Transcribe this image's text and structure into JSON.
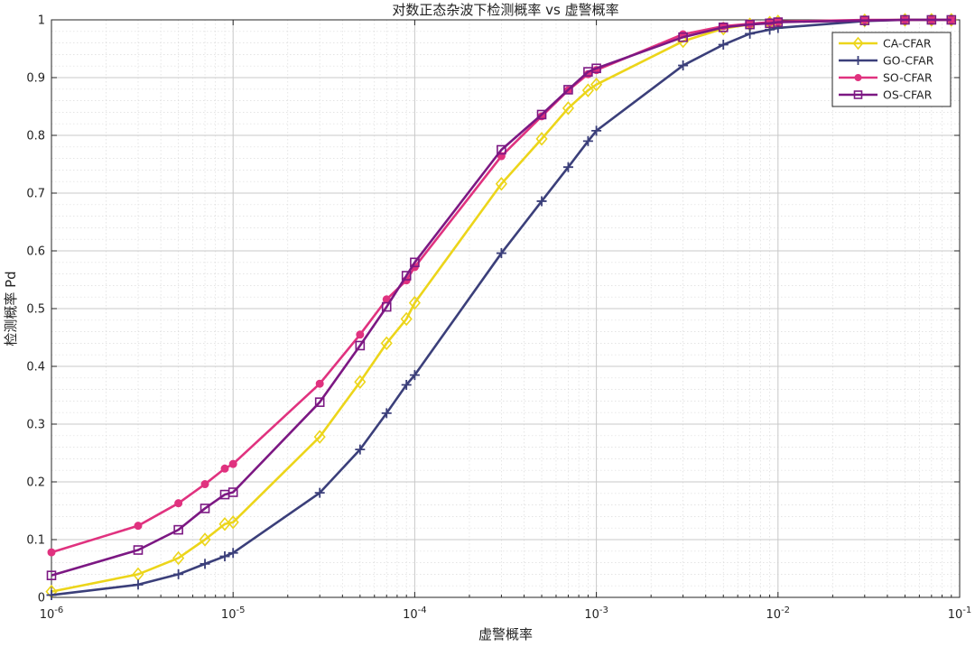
{
  "chart_data": {
    "type": "line",
    "title": "对数正态杂波下检测概率 vs 虚警概率",
    "xlabel": "虚警概率",
    "ylabel": "检测概率 Pd",
    "xscale": "log",
    "xlim": [
      1e-06,
      0.1
    ],
    "ylim": [
      0,
      1
    ],
    "grid": true,
    "minor_grid": true,
    "legend_position": "top-right",
    "x_ticks": [
      {
        "value": 1e-06,
        "base": "10",
        "exp": "-6"
      },
      {
        "value": 1e-05,
        "base": "10",
        "exp": "-5"
      },
      {
        "value": 0.0001,
        "base": "10",
        "exp": "-4"
      },
      {
        "value": 0.001,
        "base": "10",
        "exp": "-3"
      },
      {
        "value": 0.01,
        "base": "10",
        "exp": "-2"
      },
      {
        "value": 0.1,
        "base": "10",
        "exp": "-1"
      }
    ],
    "y_ticks": [
      {
        "value": 0,
        "label": "0"
      },
      {
        "value": 0.1,
        "label": "0.1"
      },
      {
        "value": 0.2,
        "label": "0.2"
      },
      {
        "value": 0.3,
        "label": "0.3"
      },
      {
        "value": 0.4,
        "label": "0.4"
      },
      {
        "value": 0.5,
        "label": "0.5"
      },
      {
        "value": 0.6,
        "label": "0.6"
      },
      {
        "value": 0.7,
        "label": "0.7"
      },
      {
        "value": 0.8,
        "label": "0.8"
      },
      {
        "value": 0.9,
        "label": "0.9"
      },
      {
        "value": 1,
        "label": "1"
      }
    ],
    "x": [
      1e-06,
      3e-06,
      5e-06,
      7e-06,
      9e-06,
      1e-05,
      3e-05,
      5e-05,
      7e-05,
      9e-05,
      0.0001,
      0.0003,
      0.0005,
      0.0007,
      0.0009,
      0.001,
      0.003,
      0.005,
      0.007,
      0.009,
      0.01,
      0.03,
      0.05,
      0.07,
      0.09
    ],
    "series": [
      {
        "name": "CA-CFAR",
        "color": "#ecd51a",
        "marker": "diamond",
        "values": [
          0.01,
          0.04,
          0.068,
          0.1,
          0.127,
          0.13,
          0.278,
          0.373,
          0.44,
          0.482,
          0.51,
          0.716,
          0.794,
          0.847,
          0.878,
          0.888,
          0.963,
          0.985,
          0.992,
          0.995,
          0.997,
          0.999,
          1.0,
          1.0,
          1.0
        ]
      },
      {
        "name": "GO-CFAR",
        "color": "#3b3f7a",
        "marker": "plus",
        "values": [
          0.004,
          0.022,
          0.04,
          0.058,
          0.071,
          0.077,
          0.181,
          0.256,
          0.319,
          0.368,
          0.385,
          0.596,
          0.686,
          0.745,
          0.79,
          0.808,
          0.921,
          0.957,
          0.976,
          0.983,
          0.986,
          0.998,
          1.0,
          1.0,
          1.0
        ]
      },
      {
        "name": "SO-CFAR",
        "color": "#e0327f",
        "marker": "circle",
        "values": [
          0.078,
          0.124,
          0.163,
          0.196,
          0.223,
          0.231,
          0.37,
          0.455,
          0.516,
          0.549,
          0.572,
          0.764,
          0.833,
          0.878,
          0.906,
          0.913,
          0.975,
          0.989,
          0.993,
          0.996,
          0.997,
          1.0,
          1.0,
          1.0,
          1.0
        ]
      },
      {
        "name": "OS-CFAR",
        "color": "#7c1883",
        "marker": "square",
        "values": [
          0.038,
          0.082,
          0.117,
          0.154,
          0.178,
          0.182,
          0.338,
          0.436,
          0.503,
          0.557,
          0.58,
          0.775,
          0.836,
          0.879,
          0.91,
          0.916,
          0.97,
          0.987,
          0.992,
          0.994,
          0.996,
          0.999,
          1.0,
          1.0,
          1.0
        ]
      }
    ]
  }
}
